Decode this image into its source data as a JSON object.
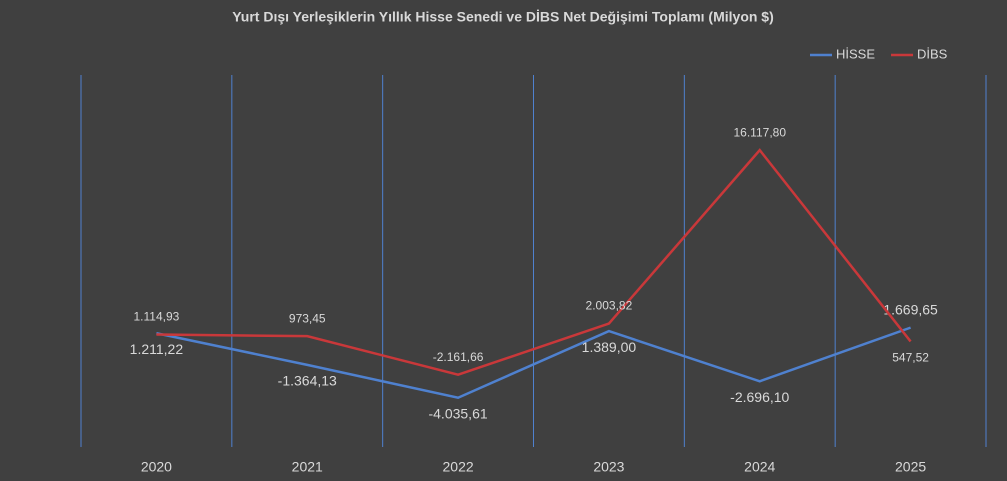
{
  "chart_data": {
    "type": "line",
    "title": "Yurt Dışı Yerleşiklerin Yıllık Hisse Senedi ve DİBS Net Değişimi Toplamı (Milyon $)",
    "categories": [
      "2020",
      "2021",
      "2022",
      "2023",
      "2024",
      "2025"
    ],
    "ylim": [
      -10000,
      25000
    ],
    "legend": "top-right",
    "series": [
      {
        "name": "HİSSE",
        "color": "#4f81cf",
        "values": [
          1211.22,
          -1364.13,
          -4035.61,
          1389.0,
          -2696.1,
          1669.65
        ],
        "value_labels": [
          "1.211,22",
          "-1.364,13",
          "-4.035,61",
          "1.389,00",
          "-2.696,10",
          "1.669,65"
        ]
      },
      {
        "name": "DİBS",
        "color": "#c9383a",
        "values": [
          1114.93,
          973.45,
          -2161.66,
          2003.82,
          16117.8,
          547.52
        ],
        "value_labels": [
          "1.114,93",
          "973,45",
          "-2.161,66",
          "2.003,82",
          "16.117,80",
          "547,52"
        ]
      }
    ]
  }
}
